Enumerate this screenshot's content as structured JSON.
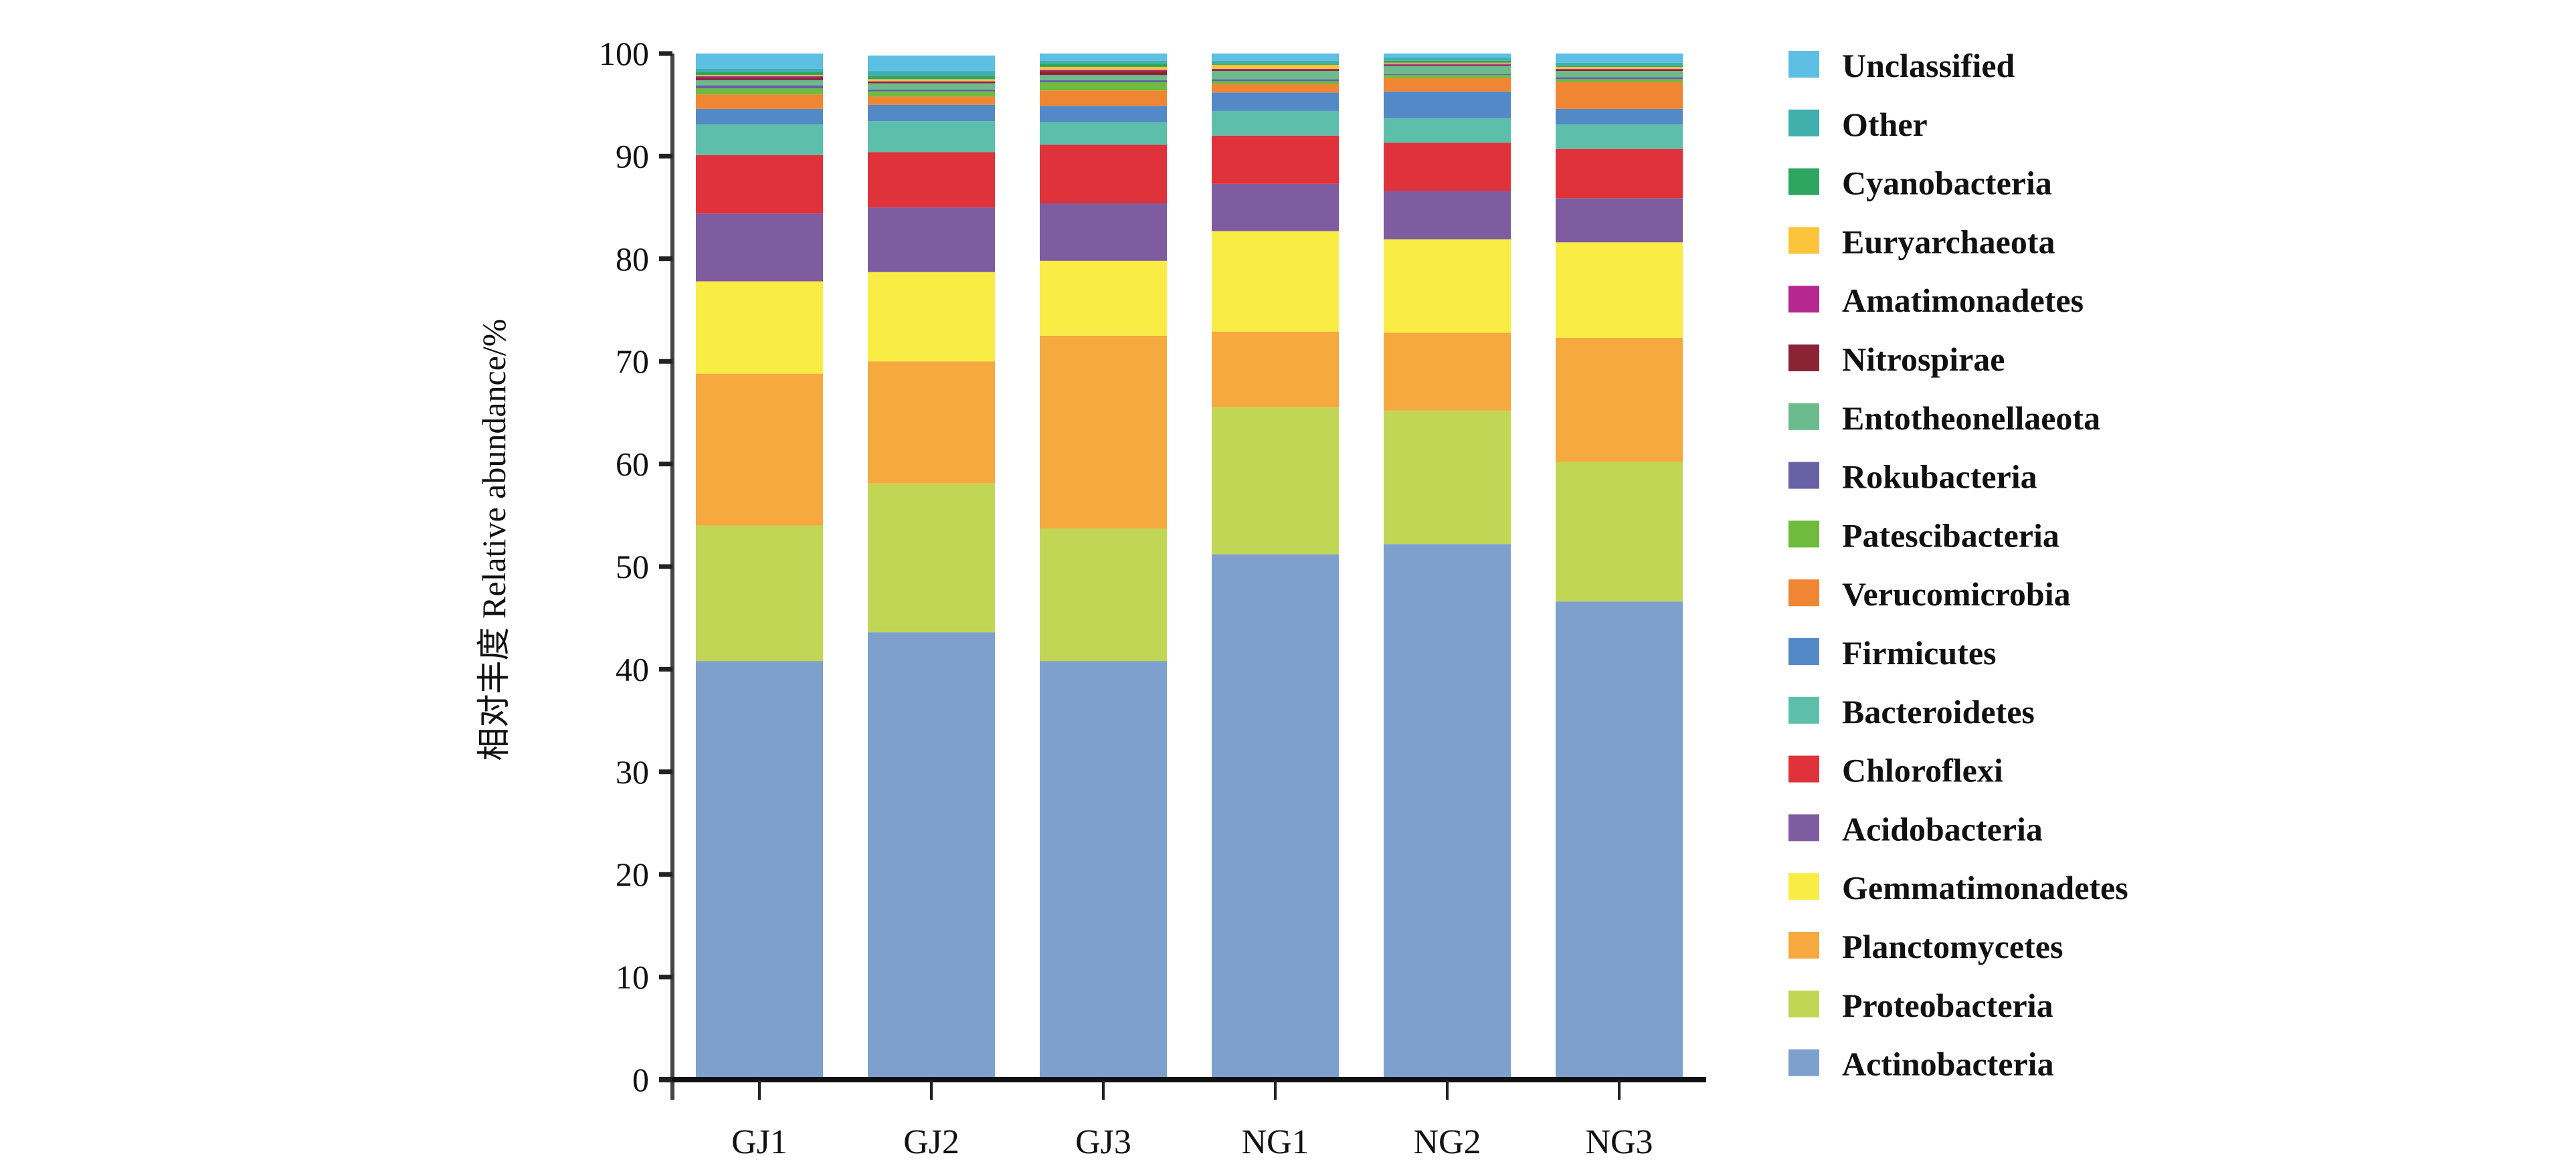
{
  "chart_data": {
    "type": "bar",
    "stacked": true,
    "title": "",
    "xlabel": "",
    "ylabel": "相对丰度 Relative abundance/%",
    "ylim": [
      0,
      100
    ],
    "yticks": [
      0,
      10,
      20,
      30,
      40,
      50,
      60,
      70,
      80,
      90,
      100
    ],
    "grid": false,
    "legend_position": "right",
    "categories": [
      "GJ1",
      "GJ2",
      "GJ3",
      "NG1",
      "NG2",
      "NG3"
    ],
    "series": [
      {
        "name": "Actinobacteria",
        "color": "#7da1cc",
        "values": [
          40.8,
          43.6,
          40.8,
          51.2,
          52.2,
          46.6
        ]
      },
      {
        "name": "Proteobacteria",
        "color": "#c2d656",
        "values": [
          13.2,
          14.5,
          12.9,
          14.3,
          13.0,
          13.6
        ]
      },
      {
        "name": "Planctomycetes",
        "color": "#f5a93f",
        "values": [
          14.8,
          11.9,
          18.8,
          7.4,
          7.6,
          12.1
        ]
      },
      {
        "name": "Gemmatimonadetes",
        "color": "#f9ec45",
        "values": [
          9.0,
          8.7,
          7.3,
          9.8,
          9.1,
          9.3
        ]
      },
      {
        "name": "Acidobacteria",
        "color": "#7f5b9f",
        "values": [
          6.6,
          6.3,
          5.6,
          4.6,
          4.7,
          4.3
        ]
      },
      {
        "name": "Chloroflexi",
        "color": "#e0323b",
        "values": [
          5.7,
          5.4,
          5.7,
          4.7,
          4.7,
          4.8
        ]
      },
      {
        "name": "Bacteroidetes",
        "color": "#5dbfa9",
        "values": [
          3.0,
          3.0,
          2.2,
          2.4,
          2.4,
          2.4
        ]
      },
      {
        "name": "Firmicutes",
        "color": "#5389c7",
        "values": [
          1.5,
          1.6,
          1.6,
          1.8,
          2.6,
          1.5
        ]
      },
      {
        "name": "Verucomicrobia",
        "color": "#f08633",
        "values": [
          1.4,
          0.8,
          1.5,
          0.8,
          1.3,
          2.6
        ]
      },
      {
        "name": "Patescibacteria",
        "color": "#6fbb3d",
        "values": [
          0.6,
          0.5,
          0.8,
          0.3,
          0.3,
          0.3
        ]
      },
      {
        "name": "Rokubacteria",
        "color": "#6762a6",
        "values": [
          0.3,
          0.2,
          0.2,
          0.2,
          0.1,
          0.2
        ]
      },
      {
        "name": "Entotheonellaeota",
        "color": "#6cbb8c",
        "values": [
          0.5,
          0.6,
          0.5,
          0.8,
          0.8,
          0.6
        ]
      },
      {
        "name": "Nitrospirae",
        "color": "#8a2435",
        "values": [
          0.3,
          0.1,
          0.4,
          0.1,
          0.1,
          0.1
        ]
      },
      {
        "name": "Amatimonadetes",
        "color": "#b5278f",
        "values": [
          0.1,
          0.1,
          0.1,
          0.1,
          0.1,
          0.1
        ]
      },
      {
        "name": "Euryarchaeota",
        "color": "#fcc43a",
        "values": [
          0.1,
          0.2,
          0.3,
          0.4,
          0.1,
          0.2
        ]
      },
      {
        "name": "Cyanobacteria",
        "color": "#2fa562",
        "values": [
          0.3,
          0.3,
          0.3,
          0.1,
          0.2,
          0.1
        ]
      },
      {
        "name": "Other",
        "color": "#3fb0ac",
        "values": [
          0.3,
          0.5,
          0.3,
          0.3,
          0.3,
          0.3
        ]
      },
      {
        "name": "Unclassified",
        "color": "#5cbfe3",
        "values": [
          1.5,
          1.5,
          0.7,
          0.7,
          0.4,
          0.9
        ]
      }
    ],
    "legend_order": [
      "Unclassified",
      "Other",
      "Cyanobacteria",
      "Euryarchaeota",
      "Amatimonadetes",
      "Nitrospirae",
      "Entotheonellaeota",
      "Rokubacteria",
      "Patescibacteria",
      "Verucomicrobia",
      "Firmicutes",
      "Bacteroidetes",
      "Chloroflexi",
      "Acidobacteria",
      "Gemmatimonadetes",
      "Planctomycetes",
      "Proteobacteria",
      "Actinobacteria"
    ]
  }
}
